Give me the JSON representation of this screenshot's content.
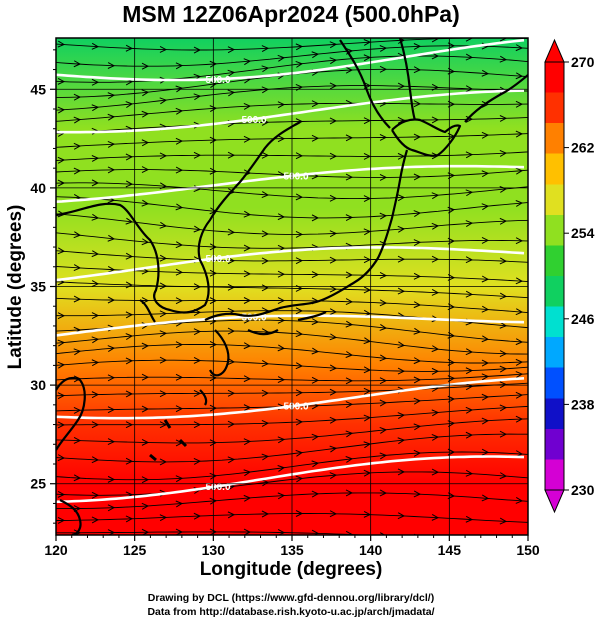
{
  "chart_data": {
    "type": "heatmap",
    "title": "MSM 12Z06Apr2024 (500.0hPa)",
    "xlabel": "Longitude (degrees)",
    "ylabel": "Latitude  (degrees)",
    "xlim": [
      120,
      150
    ],
    "ylim": [
      22.4,
      47.6
    ],
    "x_ticks": [
      "120",
      "125",
      "130",
      "135",
      "140",
      "145",
      "150"
    ],
    "y_ticks": [
      "25",
      "30",
      "35",
      "40",
      "45"
    ],
    "x_tick_values": [
      120,
      125,
      130,
      135,
      140,
      145,
      150
    ],
    "y_tick_values": [
      25,
      30,
      35,
      40,
      45
    ],
    "grid": true,
    "colorbar": {
      "min": 230,
      "max": 270,
      "ticks": [
        "230",
        "238",
        "246",
        "254",
        "262",
        "270"
      ],
      "tick_values": [
        230,
        238,
        246,
        254,
        262,
        270
      ],
      "extend": "both",
      "colors": [
        "#d400d4",
        "#7000d0",
        "#1010c8",
        "#0050ff",
        "#00a8ff",
        "#00e0d0",
        "#10d060",
        "#30d030",
        "#90e020",
        "#e0e020",
        "#ffc000",
        "#ff8000",
        "#ff3000",
        "#ff0000"
      ]
    },
    "temperature_field_lat_profile": [
      {
        "lat": 22.4,
        "value": 270.5
      },
      {
        "lat": 25,
        "value": 268.5
      },
      {
        "lat": 28,
        "value": 265.5
      },
      {
        "lat": 31,
        "value": 262.0
      },
      {
        "lat": 35,
        "value": 258.0
      },
      {
        "lat": 39,
        "value": 255.0
      },
      {
        "lat": 43,
        "value": 253.0
      },
      {
        "lat": 47.6,
        "value": 249.5
      }
    ],
    "contour_labels": [
      "500.0",
      "500.0",
      "500.0",
      "500.0",
      "500.0",
      "500.0",
      "500.0"
    ],
    "wind_field": "westerly streamlines"
  },
  "credits": {
    "line1": "Drawing by DCL (https://www.gfd-dennou.org/library/dcl/)",
    "line2": "Data from http://database.rish.kyoto-u.ac.jp/arch/jmadata/"
  }
}
